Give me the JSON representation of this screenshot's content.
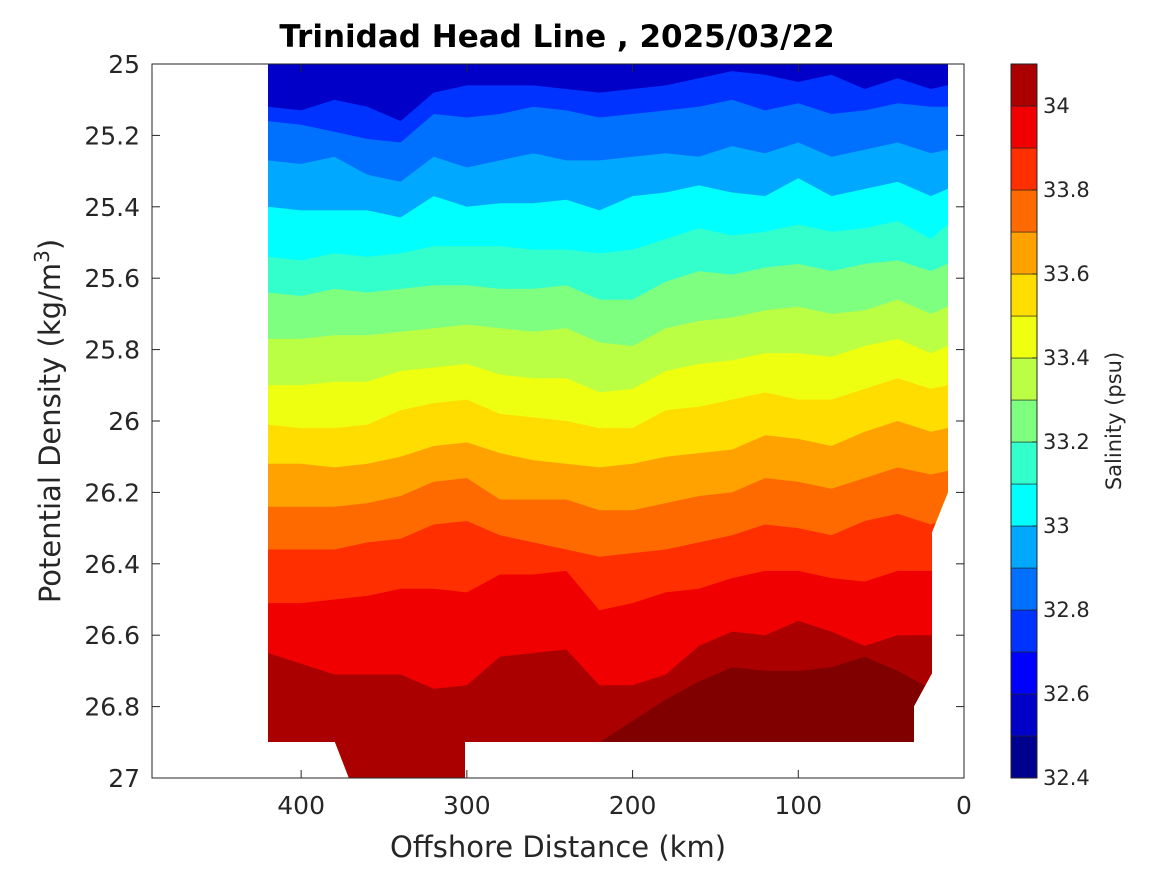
{
  "chart_data": {
    "type": "heatmap",
    "subtype": "filled-contour",
    "title": "Trinidad Head Line , 2025/03/22",
    "xlabel": "Offshore Distance (km)",
    "ylabel_main": "Potential Density (kg/m",
    "ylabel_sup": "3",
    "ylabel_close": ")",
    "colorbar_label": "Salinity (psu)",
    "xlim": [
      490,
      0
    ],
    "x_reversed": true,
    "ylim": [
      27,
      25
    ],
    "y_reversed": true,
    "xticks": [
      400,
      300,
      200,
      100,
      0
    ],
    "xtick_labels": [
      "400",
      "300",
      "200",
      "100",
      "0"
    ],
    "yticks": [
      25,
      25.2,
      25.4,
      25.6,
      25.8,
      26,
      26.2,
      26.4,
      26.6,
      26.8,
      27
    ],
    "ytick_labels": [
      "25",
      "25.2",
      "25.4",
      "25.6",
      "25.8",
      "26",
      "26.2",
      "26.4",
      "26.6",
      "26.8",
      "27"
    ],
    "colorbar_range": [
      32.4,
      34.1
    ],
    "colorbar_ticks": [
      32.4,
      32.6,
      32.8,
      33,
      33.2,
      33.4,
      33.6,
      33.8,
      34
    ],
    "colorbar_tick_labels": [
      "32.4",
      "32.6",
      "32.8",
      "33",
      "33.2",
      "33.4",
      "33.6",
      "33.8",
      "34"
    ],
    "levels": [
      32.4,
      32.5,
      32.6,
      32.7,
      32.8,
      32.9,
      33.0,
      33.1,
      33.2,
      33.3,
      33.4,
      33.5,
      33.6,
      33.7,
      33.8,
      33.9,
      34.0,
      34.1
    ],
    "level_colors": [
      "#00008f",
      "#0000c8",
      "#0000ff",
      "#0033ff",
      "#0070ff",
      "#00a8ff",
      "#00ffff",
      "#33ffcc",
      "#7fff80",
      "#bbff44",
      "#eeff10",
      "#ffdd00",
      "#ffa200",
      "#ff6a00",
      "#ff2f00",
      "#f00000",
      "#aa0000",
      "#800000"
    ],
    "boundary_x": [
      0.55,
      0.55,
      0.2,
      0.0,
      0.0
    ],
    "contour_x": [
      420,
      400,
      380,
      360,
      340,
      320,
      300,
      280,
      260,
      240,
      220,
      200,
      180,
      160,
      140,
      120,
      100,
      80,
      60,
      40,
      20,
      10
    ],
    "contours": [
      {
        "level": 32.7,
        "y": [
          25.12,
          25.13,
          25.1,
          25.12,
          25.16,
          25.08,
          25.06,
          25.06,
          25.06,
          25.07,
          25.08,
          25.07,
          25.06,
          25.04,
          25.02,
          25.03,
          25.05,
          25.03,
          25.07,
          25.04,
          25.07,
          25.06
        ]
      },
      {
        "level": 32.8,
        "y": [
          25.16,
          25.17,
          25.19,
          25.21,
          25.22,
          25.14,
          25.15,
          25.14,
          25.12,
          25.13,
          25.15,
          25.14,
          25.13,
          25.12,
          25.1,
          25.13,
          25.11,
          25.14,
          25.13,
          25.11,
          25.12,
          25.12
        ]
      },
      {
        "level": 32.9,
        "y": [
          25.27,
          25.28,
          25.26,
          25.31,
          25.33,
          25.26,
          25.29,
          25.27,
          25.25,
          25.27,
          25.27,
          25.26,
          25.25,
          25.26,
          25.23,
          25.25,
          25.22,
          25.26,
          25.24,
          25.22,
          25.25,
          25.24
        ]
      },
      {
        "level": 33.0,
        "y": [
          25.4,
          25.41,
          25.41,
          25.41,
          25.43,
          25.37,
          25.4,
          25.39,
          25.39,
          25.38,
          25.41,
          25.37,
          25.36,
          25.34,
          25.36,
          25.37,
          25.32,
          25.37,
          25.35,
          25.33,
          25.37,
          25.35
        ]
      },
      {
        "level": 33.1,
        "y": [
          25.54,
          25.55,
          25.53,
          25.54,
          25.53,
          25.51,
          25.51,
          25.51,
          25.52,
          25.52,
          25.53,
          25.52,
          25.49,
          25.46,
          25.48,
          25.47,
          25.45,
          25.47,
          25.46,
          25.44,
          25.49,
          25.45
        ]
      },
      {
        "level": 33.2,
        "y": [
          25.64,
          25.65,
          25.63,
          25.64,
          25.63,
          25.62,
          25.62,
          25.63,
          25.63,
          25.62,
          25.66,
          25.66,
          25.61,
          25.58,
          25.59,
          25.57,
          25.56,
          25.58,
          25.56,
          25.55,
          25.58,
          25.56
        ]
      },
      {
        "level": 33.3,
        "y": [
          25.77,
          25.77,
          25.76,
          25.76,
          25.75,
          25.74,
          25.73,
          25.74,
          25.75,
          25.74,
          25.78,
          25.79,
          25.74,
          25.72,
          25.71,
          25.69,
          25.68,
          25.7,
          25.69,
          25.66,
          25.7,
          25.68
        ]
      },
      {
        "level": 33.4,
        "y": [
          25.9,
          25.9,
          25.89,
          25.89,
          25.86,
          25.85,
          25.84,
          25.87,
          25.88,
          25.88,
          25.92,
          25.91,
          25.86,
          25.84,
          25.83,
          25.81,
          25.81,
          25.82,
          25.79,
          25.77,
          25.81,
          25.79
        ]
      },
      {
        "level": 33.5,
        "y": [
          26.01,
          26.02,
          26.02,
          26.01,
          25.97,
          25.95,
          25.94,
          25.98,
          25.99,
          26.0,
          26.02,
          26.02,
          25.97,
          25.96,
          25.94,
          25.92,
          25.94,
          25.94,
          25.91,
          25.88,
          25.91,
          25.9
        ]
      },
      {
        "level": 33.6,
        "y": [
          26.12,
          26.12,
          26.13,
          26.12,
          26.1,
          26.07,
          26.06,
          26.09,
          26.11,
          26.12,
          26.13,
          26.12,
          26.1,
          26.09,
          26.08,
          26.04,
          26.05,
          26.07,
          26.03,
          26.0,
          26.03,
          26.02
        ]
      },
      {
        "level": 33.7,
        "y": [
          26.24,
          26.24,
          26.24,
          26.23,
          26.21,
          26.17,
          26.16,
          26.22,
          26.22,
          26.22,
          26.25,
          26.25,
          26.23,
          26.21,
          26.2,
          26.16,
          26.17,
          26.19,
          26.16,
          26.13,
          26.15,
          26.14
        ]
      },
      {
        "level": 33.8,
        "y": [
          26.36,
          26.36,
          26.36,
          26.34,
          26.33,
          26.29,
          26.28,
          26.32,
          26.34,
          26.36,
          26.38,
          26.37,
          26.36,
          26.34,
          26.32,
          26.29,
          26.3,
          26.32,
          26.28,
          26.26,
          26.29,
          26.27
        ]
      },
      {
        "level": 33.9,
        "y": [
          26.51,
          26.51,
          26.5,
          26.49,
          26.47,
          26.47,
          26.48,
          26.43,
          26.43,
          26.42,
          26.53,
          26.51,
          26.48,
          26.47,
          26.44,
          26.42,
          26.42,
          26.44,
          26.45,
          26.42,
          26.42,
          26.42
        ]
      },
      {
        "level": 34.0,
        "y": [
          26.65,
          26.68,
          26.71,
          26.71,
          26.71,
          26.75,
          26.74,
          26.66,
          26.65,
          26.64,
          26.74,
          26.74,
          26.71,
          26.63,
          26.59,
          26.6,
          26.56,
          26.59,
          26.63,
          26.6,
          26.6,
          26.6
        ]
      },
      {
        "level": 34.1,
        "y": [
          27.0,
          27.0,
          27.0,
          27.0,
          27.0,
          27.0,
          27.0,
          27.0,
          27.0,
          27.0,
          27.0,
          26.89,
          26.86,
          26.84,
          26.8,
          26.79,
          26.79,
          26.79,
          26.81,
          26.8,
          27.0,
          27.0
        ]
      }
    ]
  }
}
